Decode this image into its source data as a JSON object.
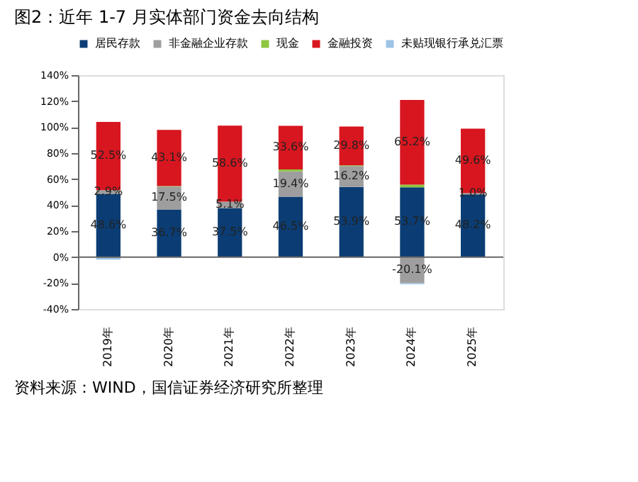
{
  "chart_data": {
    "type": "bar",
    "stacked": true,
    "title": "图2：近年 1-7 月实体部门资金去向结构",
    "categories": [
      "2019年",
      "2020年",
      "2021年",
      "2022年",
      "2023年",
      "2024年",
      "2025年"
    ],
    "series": [
      {
        "name": "居民存款",
        "color": "#0b3d74",
        "values": [
          48.6,
          36.7,
          37.5,
          46.5,
          53.9,
          53.7,
          48.2
        ],
        "value_labels": [
          "48.6%",
          "36.7%",
          "37.5%",
          "46.5%",
          "53.9%",
          "53.7%",
          "48.2%"
        ]
      },
      {
        "name": "非金融企业存款",
        "color": "#9e9e9e",
        "values": [
          2.9,
          17.5,
          5.1,
          19.4,
          16.2,
          -20.1,
          1.0
        ],
        "value_labels": [
          "2.9%",
          "17.5%",
          "5.1%",
          "19.4%",
          "16.2%",
          "-20.1%",
          "1.0%"
        ]
      },
      {
        "name": "现金",
        "color": "#8dc63f",
        "values": [
          0,
          0.5,
          0,
          1.5,
          0.5,
          2,
          null
        ]
      },
      {
        "name": "金融投资",
        "color": "#d7161f",
        "values": [
          52.5,
          43.1,
          58.6,
          33.6,
          29.8,
          65.2,
          49.6
        ],
        "value_labels": [
          "52.5%",
          "43.1%",
          "58.6%",
          "33.6%",
          "29.8%",
          "65.2%",
          "49.6%"
        ]
      },
      {
        "name": "未贴现银行承兑汇票",
        "color": "#9dc3e6",
        "values": [
          -2,
          null,
          0,
          null,
          0,
          -0.8,
          0
        ]
      }
    ],
    "ylim": [
      -40,
      140
    ],
    "yticks": [
      {
        "value": -40,
        "label": "-40%"
      },
      {
        "value": -20,
        "label": "-20%"
      },
      {
        "value": 0,
        "label": "0%"
      },
      {
        "value": 20,
        "label": "20%"
      },
      {
        "value": 40,
        "label": "40%"
      },
      {
        "value": 60,
        "label": "60%"
      },
      {
        "value": 80,
        "label": "80%"
      },
      {
        "value": 100,
        "label": "100%"
      },
      {
        "value": 120,
        "label": "120%"
      },
      {
        "value": 140,
        "label": "140%"
      }
    ],
    "ref_lines": [
      {
        "axis": "y",
        "value": 0,
        "color": "#666666"
      }
    ],
    "grid": false,
    "legend": "top",
    "annotations": [
      "资料来源：WIND，国信证券经济研究所整理"
    ]
  }
}
